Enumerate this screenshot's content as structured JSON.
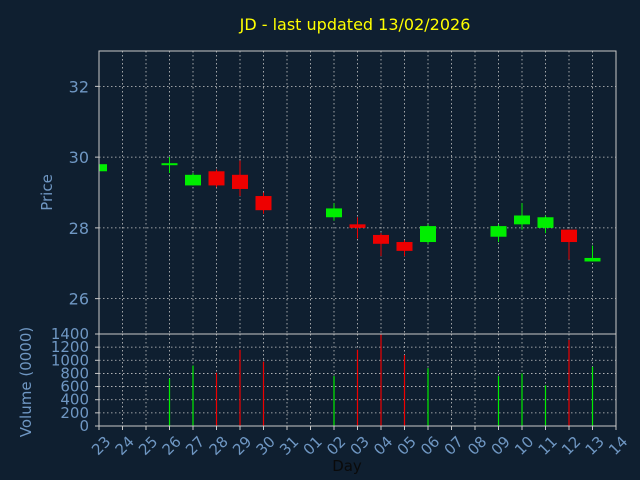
{
  "title": "JD - last updated 13/02/2026",
  "colors": {
    "background": "#0f1f30",
    "title": "#ffff00",
    "axis_text": "#6f97c3",
    "up": "#00ee00",
    "down": "#ee0000",
    "grid": "#c8c8c8"
  },
  "chart_data": [
    {
      "type": "candlestick",
      "ylabel": "Price",
      "ylim": [
        25.0,
        33.0
      ],
      "yticks": [
        26,
        28,
        30,
        32
      ],
      "grid": true,
      "x": [
        "23",
        "24",
        "25",
        "26",
        "27",
        "28",
        "29",
        "30",
        "31",
        "01",
        "02",
        "03",
        "04",
        "05",
        "06",
        "07",
        "08",
        "09",
        "10",
        "11",
        "12",
        "13",
        "14"
      ],
      "candles": [
        {
          "x": "23",
          "open": 29.6,
          "high": 29.8,
          "low": 29.6,
          "close": 29.8
        },
        {
          "x": "26",
          "open": 29.75,
          "high": 30.0,
          "low": 29.55,
          "close": 29.8
        },
        {
          "x": "27",
          "open": 29.2,
          "high": 29.55,
          "low": 29.2,
          "close": 29.5
        },
        {
          "x": "28",
          "open": 29.6,
          "high": 29.65,
          "low": 29.15,
          "close": 29.2
        },
        {
          "x": "29",
          "open": 29.5,
          "high": 29.9,
          "low": 28.9,
          "close": 29.1
        },
        {
          "x": "30",
          "open": 28.9,
          "high": 29.0,
          "low": 28.4,
          "close": 28.5
        },
        {
          "x": "02",
          "open": 28.3,
          "high": 28.7,
          "low": 28.2,
          "close": 28.55
        },
        {
          "x": "03",
          "open": 28.1,
          "high": 28.3,
          "low": 27.7,
          "close": 28.0
        },
        {
          "x": "04",
          "open": 27.8,
          "high": 27.85,
          "low": 27.2,
          "close": 27.55
        },
        {
          "x": "05",
          "open": 27.6,
          "high": 27.65,
          "low": 27.2,
          "close": 27.35
        },
        {
          "x": "06",
          "open": 27.6,
          "high": 28.1,
          "low": 27.55,
          "close": 28.05
        },
        {
          "x": "09",
          "open": 27.75,
          "high": 28.1,
          "low": 27.6,
          "close": 28.05
        },
        {
          "x": "10",
          "open": 28.1,
          "high": 28.7,
          "low": 27.95,
          "close": 28.35
        },
        {
          "x": "11",
          "open": 28.0,
          "high": 28.35,
          "low": 27.85,
          "close": 28.3
        },
        {
          "x": "12",
          "open": 27.95,
          "high": 27.95,
          "low": 27.1,
          "close": 27.6
        },
        {
          "x": "13",
          "open": 27.05,
          "high": 27.5,
          "low": 27.05,
          "close": 27.15
        }
      ]
    },
    {
      "type": "bar",
      "ylabel": "Volume (0000)",
      "xlabel": "Day",
      "ylim": [
        0,
        1400
      ],
      "yticks": [
        0,
        200,
        400,
        600,
        800,
        1000,
        1200,
        1400
      ],
      "grid": true,
      "x": [
        "23",
        "24",
        "25",
        "26",
        "27",
        "28",
        "29",
        "30",
        "31",
        "01",
        "02",
        "03",
        "04",
        "05",
        "06",
        "07",
        "08",
        "09",
        "10",
        "11",
        "12",
        "13",
        "14"
      ],
      "bars": [
        {
          "x": "26",
          "value": 720,
          "dir": "up"
        },
        {
          "x": "27",
          "value": 920,
          "dir": "up"
        },
        {
          "x": "28",
          "value": 810,
          "dir": "down"
        },
        {
          "x": "29",
          "value": 1160,
          "dir": "down"
        },
        {
          "x": "30",
          "value": 980,
          "dir": "down"
        },
        {
          "x": "02",
          "value": 760,
          "dir": "up"
        },
        {
          "x": "03",
          "value": 1160,
          "dir": "down"
        },
        {
          "x": "04",
          "value": 1390,
          "dir": "down"
        },
        {
          "x": "05",
          "value": 1080,
          "dir": "down"
        },
        {
          "x": "06",
          "value": 880,
          "dir": "up"
        },
        {
          "x": "09",
          "value": 760,
          "dir": "up"
        },
        {
          "x": "10",
          "value": 800,
          "dir": "up"
        },
        {
          "x": "11",
          "value": 620,
          "dir": "up"
        },
        {
          "x": "12",
          "value": 1310,
          "dir": "down"
        },
        {
          "x": "13",
          "value": 900,
          "dir": "up"
        }
      ]
    }
  ]
}
